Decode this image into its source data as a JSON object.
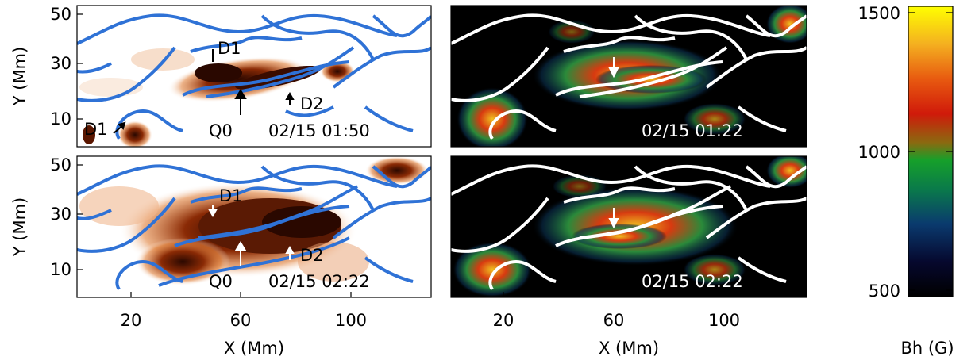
{
  "figure": {
    "panels": {
      "top_left": {
        "timestamp": "02/15 01:50",
        "labels": {
          "d1_a": "D1",
          "d1_b": "D1",
          "d2": "D2",
          "q0": "Q0"
        }
      },
      "bottom_left": {
        "timestamp": "02/15 02:22",
        "labels": {
          "d1": "D1",
          "d2": "D2",
          "q0": "Q0"
        }
      },
      "top_right": {
        "timestamp": "02/15 01:22"
      },
      "bottom_right": {
        "timestamp": "02/15 02:22"
      }
    },
    "axes": {
      "x_label": "X (Mm)",
      "y_label": "Y (Mm)",
      "x_ticks": [
        "20",
        "60",
        "100"
      ],
      "y_ticks": [
        "50",
        "30",
        "10"
      ]
    },
    "colorbar": {
      "label": "Bh (G)",
      "ticks": [
        "1500",
        "1000",
        "500"
      ],
      "range": [
        500,
        1500
      ]
    },
    "colors": {
      "contour_blue": "#2f72d6",
      "contour_white": "#ffffff",
      "heat_dark": "#4a1200",
      "heat_mid": "#c85a10",
      "map_background": "#000000"
    }
  }
}
